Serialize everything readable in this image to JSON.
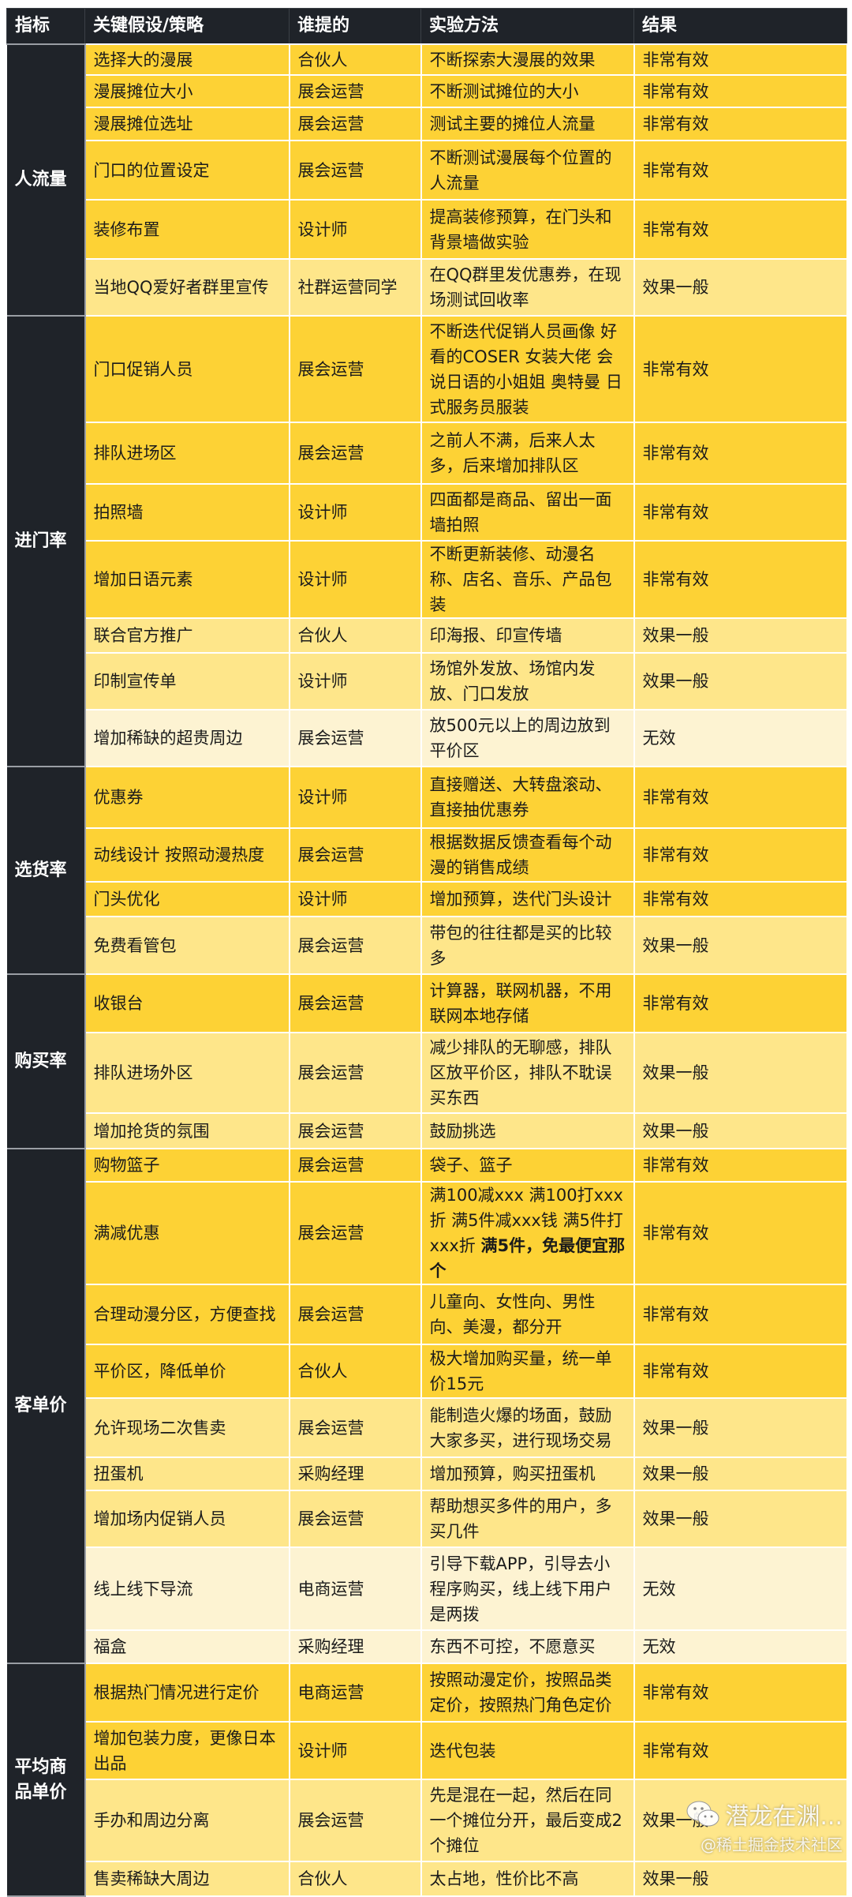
{
  "colors": {
    "header_bg": "#1f2329",
    "very_effective": "#fdd235",
    "moderate": "#fee68a",
    "ineffective": "#fdf3d2"
  },
  "headers": [
    "指标",
    "关键假设/策略",
    "谁提的",
    "实验方法",
    "结果"
  ],
  "groups": [
    {
      "metric": "人流量",
      "rows": [
        {
          "strategy": "选择大的漫展",
          "who": "合伙人",
          "method": "不断探索大漫展的效果",
          "result": "非常有效",
          "level": "high"
        },
        {
          "strategy": "漫展摊位大小",
          "who": "展会运营",
          "method": "不断测试摊位的大小",
          "result": "非常有效",
          "level": "high"
        },
        {
          "strategy": "漫展摊位选址",
          "who": "展会运营",
          "method": "测试主要的摊位人流量",
          "result": "非常有效",
          "level": "high"
        },
        {
          "strategy": "门口的位置设定",
          "who": "展会运营",
          "method": "不断测试漫展每个位置的人流量",
          "result": "非常有效",
          "level": "high"
        },
        {
          "strategy": "装修布置",
          "who": "设计师",
          "method": "提高装修预算，在门头和背景墙做实验",
          "result": "非常有效",
          "level": "high"
        },
        {
          "strategy": "当地QQ爱好者群里宣传",
          "who": "社群运营同学",
          "method": "在QQ群里发优惠券，在现场测试回收率",
          "result": "效果一般",
          "level": "mid"
        }
      ]
    },
    {
      "metric": "进门率",
      "rows": [
        {
          "strategy": "门口促销人员",
          "who": "展会运营",
          "method": "不断迭代促销人员画像 好看的COSER 女装大佬 会说日语的小姐姐 奥特曼 日式服务员服装",
          "result": "非常有效",
          "level": "high"
        },
        {
          "strategy": "排队进场区",
          "who": "展会运营",
          "method": "之前人不满，后来人太多，后来增加排队区",
          "result": "非常有效",
          "level": "high"
        },
        {
          "strategy": "拍照墙",
          "who": "设计师",
          "method": "四面都是商品、留出一面墙拍照",
          "result": "非常有效",
          "level": "high"
        },
        {
          "strategy": "增加日语元素",
          "who": "设计师",
          "method": "不断更新装修、动漫名称、店名、音乐、产品包装",
          "result": "非常有效",
          "level": "high"
        },
        {
          "strategy": "联合官方推广",
          "who": "合伙人",
          "method": "印海报、印宣传墙",
          "result": "效果一般",
          "level": "mid"
        },
        {
          "strategy": "印制宣传单",
          "who": "设计师",
          "method": "场馆外发放、场馆内发放、门口发放",
          "result": "效果一般",
          "level": "mid"
        },
        {
          "strategy": "增加稀缺的超贵周边",
          "who": "展会运营",
          "method": "放500元以上的周边放到平价区",
          "result": "无效",
          "level": "none"
        }
      ]
    },
    {
      "metric": "选货率",
      "rows": [
        {
          "strategy": "优惠券",
          "who": "设计师",
          "method": "直接赠送、大转盘滚动、直接抽优惠券",
          "result": "非常有效",
          "level": "high"
        },
        {
          "strategy": "动线设计 按照动漫热度",
          "who": "展会运营",
          "method": "根据数据反馈查看每个动漫的销售成绩",
          "result": "非常有效",
          "level": "high"
        },
        {
          "strategy": "门头优化",
          "who": "设计师",
          "method": "增加预算，迭代门头设计",
          "result": "非常有效",
          "level": "high"
        },
        {
          "strategy": "免费看管包",
          "who": "展会运营",
          "method": "带包的往往都是买的比较多",
          "result": "效果一般",
          "level": "mid"
        }
      ]
    },
    {
      "metric": "购买率",
      "rows": [
        {
          "strategy": "收银台",
          "who": "展会运营",
          "method": "计算器，联网机器，不用联网本地存储",
          "result": "非常有效",
          "level": "high"
        },
        {
          "strategy": "排队进场外区",
          "who": "展会运营",
          "method": "减少排队的无聊感，排队区放平价区，排队不耽误买东西",
          "result": "效果一般",
          "level": "mid"
        },
        {
          "strategy": "增加抢货的氛围",
          "who": "展会运营",
          "method": "鼓励挑选",
          "result": "效果一般",
          "level": "mid"
        }
      ]
    },
    {
      "metric": "客单价",
      "rows": [
        {
          "strategy": "购物篮子",
          "who": "展会运营",
          "method": "袋子、篮子",
          "result": "非常有效",
          "level": "high"
        },
        {
          "strategy": "满减优惠",
          "who": "展会运营",
          "method": "满100减xxx 满100打xxx折 满5件减xxx钱 满5件打xxx折 ",
          "method_bold": "满5件，免最便宜那个",
          "result": "非常有效",
          "level": "high"
        },
        {
          "strategy": "合理动漫分区，方便查找",
          "who": "展会运营",
          "method": "儿童向、女性向、男性向、美漫，都分开",
          "result": "非常有效",
          "level": "high"
        },
        {
          "strategy": "平价区，降低单价",
          "who": "合伙人",
          "method": "极大增加购买量，统一单价15元",
          "result": "非常有效",
          "level": "high"
        },
        {
          "strategy": "允许现场二次售卖",
          "who": "展会运营",
          "method": "能制造火爆的场面，鼓励大家多买，进行现场交易",
          "result": "效果一般",
          "level": "mid"
        },
        {
          "strategy": "扭蛋机",
          "who": "采购经理",
          "method": "增加预算，购买扭蛋机",
          "result": "效果一般",
          "level": "mid"
        },
        {
          "strategy": "增加场内促销人员",
          "who": "展会运营",
          "method": "帮助想买多件的用户，多买几件",
          "result": "效果一般",
          "level": "mid"
        },
        {
          "strategy": "线上线下导流",
          "who": "电商运营",
          "method": "引导下载APP，引导去小程序购买，线上线下用户是两拨",
          "result": "无效",
          "level": "none"
        },
        {
          "strategy": "福盒",
          "who": "采购经理",
          "method": "东西不可控，不愿意买",
          "result": "无效",
          "level": "none"
        }
      ]
    },
    {
      "metric": "平均商品单价",
      "rows": [
        {
          "strategy": "根据热门情况进行定价",
          "who": "电商运营",
          "method": "按照动漫定价，按照品类定价，按照热门角色定价",
          "result": "非常有效",
          "level": "high"
        },
        {
          "strategy": "增加包装力度，更像日本出品",
          "who": "设计师",
          "method": "迭代包装",
          "result": "非常有效",
          "level": "high"
        },
        {
          "strategy": "手办和周边分离",
          "who": "展会运营",
          "method": "先是混在一起，然后在同一个摊位分开，最后变成2个摊位",
          "result": "效果一般",
          "level": "mid"
        },
        {
          "strategy": "售卖稀缺大周边",
          "who": "合伙人",
          "method": "太占地，性价比不高",
          "result": "效果一般",
          "level": "mid"
        }
      ]
    }
  ],
  "watermark": {
    "name": "潜龙在渊...",
    "sub": "@稀土掘金技术社区",
    "icon": "wechat-icon"
  }
}
